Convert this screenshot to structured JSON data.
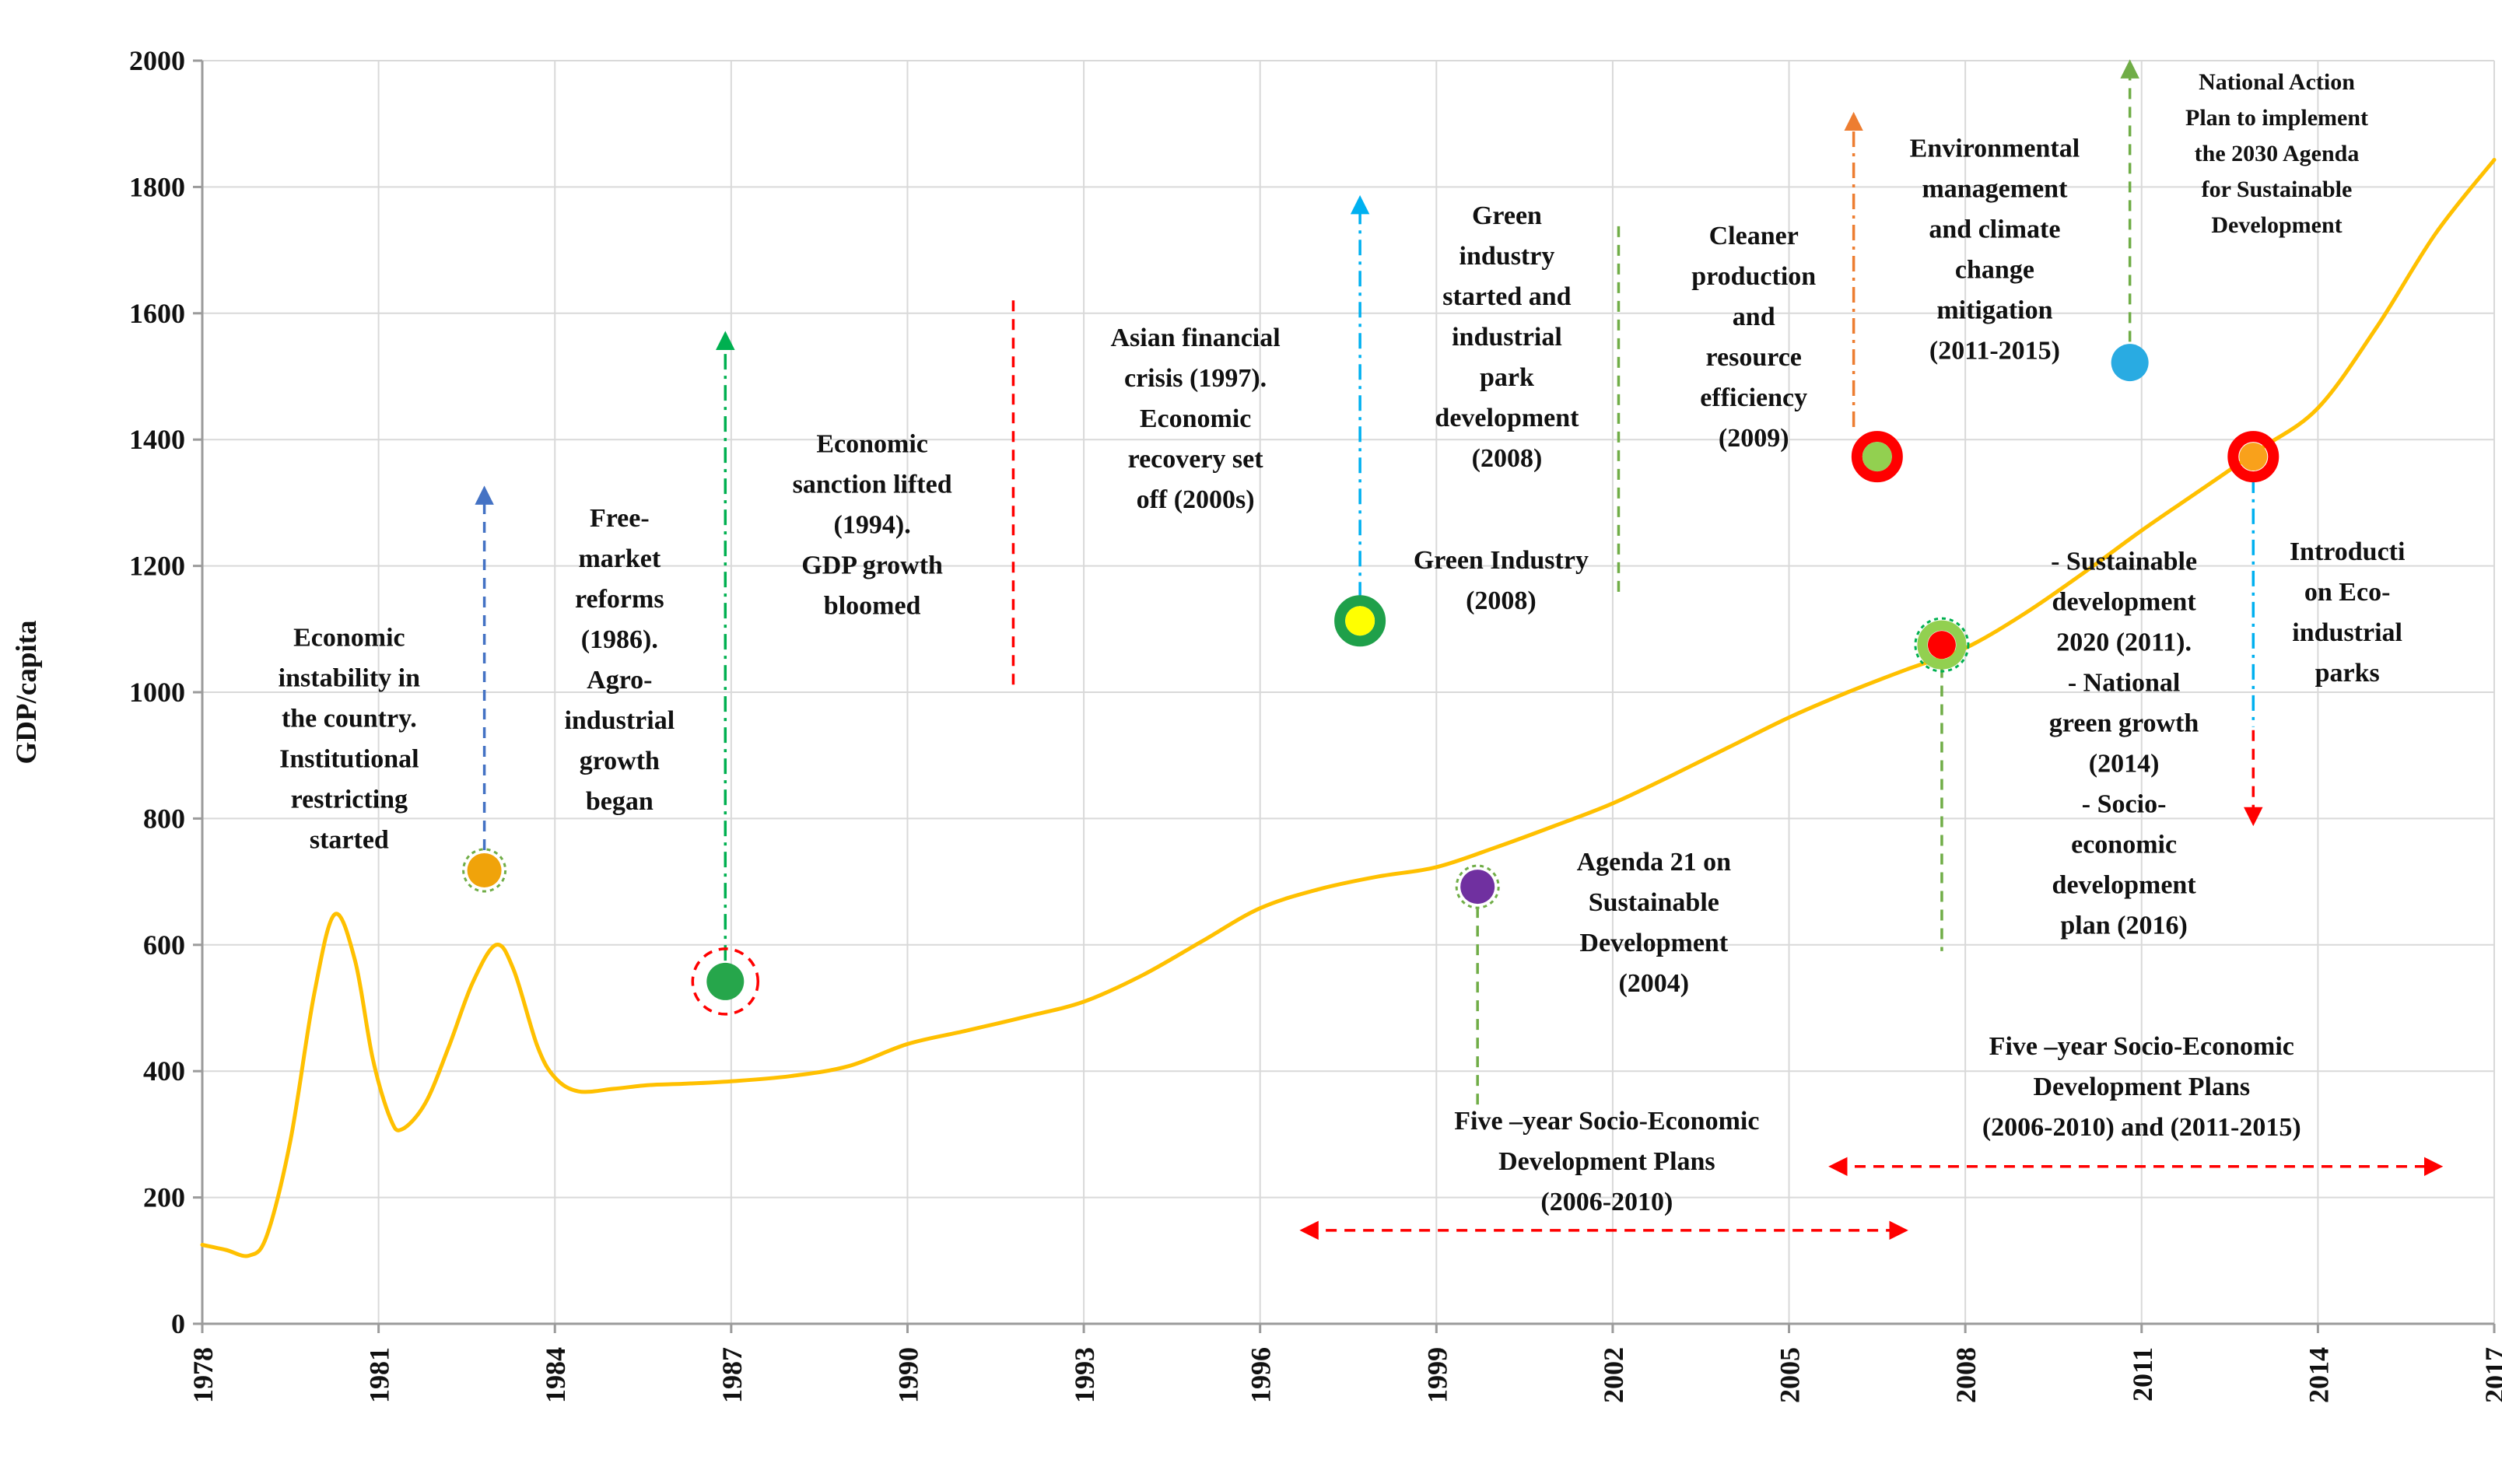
{
  "chart_data": {
    "type": "line",
    "title": "",
    "xlabel": "",
    "ylabel": "GDP/capita",
    "xlim": [
      1978,
      2017
    ],
    "ylim": [
      0,
      2000
    ],
    "x_ticks": [
      1978,
      1981,
      1984,
      1987,
      1990,
      1993,
      1996,
      1999,
      2002,
      2005,
      2008,
      2011,
      2014,
      2017
    ],
    "y_ticks": [
      0,
      200,
      400,
      600,
      800,
      1000,
      1200,
      1400,
      1600,
      1800,
      2000
    ],
    "grid": true,
    "grid_color": "#D9D9D9",
    "axis_color": "#9B9B9B",
    "series": [
      {
        "name": "GDP per capita",
        "color": "#FFC000",
        "points": [
          [
            1978,
            125
          ],
          [
            1978.4,
            117
          ],
          [
            1978.8,
            108
          ],
          [
            1979.1,
            140
          ],
          [
            1979.5,
            290
          ],
          [
            1979.9,
            520
          ],
          [
            1980.25,
            648
          ],
          [
            1980.6,
            575
          ],
          [
            1980.9,
            420
          ],
          [
            1981.2,
            325
          ],
          [
            1981.4,
            308
          ],
          [
            1981.8,
            350
          ],
          [
            1982.2,
            440
          ],
          [
            1982.6,
            540
          ],
          [
            1983,
            600
          ],
          [
            1983.3,
            560
          ],
          [
            1983.7,
            440
          ],
          [
            1984,
            390
          ],
          [
            1984.4,
            368
          ],
          [
            1985,
            372
          ],
          [
            1985.6,
            378
          ],
          [
            1986.2,
            380
          ],
          [
            1987,
            384
          ],
          [
            1988,
            392
          ],
          [
            1989,
            408
          ],
          [
            1990,
            443
          ],
          [
            1991,
            464
          ],
          [
            1992,
            486
          ],
          [
            1993,
            510
          ],
          [
            1994,
            552
          ],
          [
            1995,
            605
          ],
          [
            1996,
            658
          ],
          [
            1997,
            688
          ],
          [
            1998,
            708
          ],
          [
            1999,
            723
          ],
          [
            2000,
            754
          ],
          [
            2001,
            788
          ],
          [
            2002,
            824
          ],
          [
            2003,
            868
          ],
          [
            2004,
            914
          ],
          [
            2005,
            960
          ],
          [
            2006,
            1000
          ],
          [
            2007,
            1036
          ],
          [
            2008,
            1070
          ],
          [
            2009,
            1124
          ],
          [
            2010,
            1188
          ],
          [
            2011,
            1256
          ],
          [
            2012,
            1320
          ],
          [
            2013,
            1384
          ],
          [
            2014,
            1450
          ],
          [
            2015,
            1578
          ],
          [
            2016,
            1726
          ],
          [
            2017,
            1843
          ]
        ]
      }
    ],
    "markers": [
      {
        "name": "free-market-dot",
        "x": 1982.8,
        "y": 718,
        "r": 22,
        "fill": "#F0A30A",
        "ring": {
          "color": "#70AD47",
          "width": 3,
          "r": 27,
          "dash": "5 5"
        }
      },
      {
        "name": "sanction-dot",
        "x": 1986.9,
        "y": 542,
        "r": 24,
        "fill": "#26A64B",
        "ring": {
          "color": "#FF0000",
          "width": 3.5,
          "r": 42,
          "dash": "12 9"
        }
      },
      {
        "name": "green-industry-dot",
        "x": 1997.7,
        "y": 1113,
        "r": 19,
        "fill": "#FFFF00",
        "ring": {
          "color": "#1FA04A",
          "width": 14,
          "r": 26,
          "dash": ""
        }
      },
      {
        "name": "agenda21-dot",
        "x": 1999.7,
        "y": 692,
        "r": 22,
        "fill": "#7030A0",
        "ring": {
          "color": "#70AD47",
          "width": 3,
          "r": 27,
          "dash": "5 5"
        }
      },
      {
        "name": "cleaner-production-dot",
        "x": 2006.5,
        "y": 1373,
        "r": 19,
        "fill": "#92D050",
        "ring": {
          "color": "#FF0000",
          "width": 14,
          "r": 26,
          "dash": ""
        }
      },
      {
        "name": "sustainable-dev-dot",
        "x": 2007.6,
        "y": 1075,
        "r": 18,
        "fill": "#FF0000",
        "ring": {
          "color": "#92D050",
          "width": 13,
          "r": 25,
          "dash": ""
        },
        "outline": {
          "color": "#00B050",
          "width": 3,
          "r": 34,
          "dash": "5 5"
        }
      },
      {
        "name": "national-action-dot",
        "x": 2010.8,
        "y": 1522,
        "r": 24,
        "fill": "#29ABE2"
      },
      {
        "name": "eip-dot",
        "x": 2012.9,
        "y": 1373,
        "r": 18,
        "fill": "#F9A11B",
        "ring": {
          "color": "#FF0000",
          "width": 14,
          "r": 26,
          "dash": ""
        }
      }
    ],
    "arrows": [
      {
        "name": "free-market-arrow",
        "x1": 1982.8,
        "y1": 750,
        "x2": 1982.8,
        "y2": 1315,
        "color": "#4472C4",
        "style": "dash",
        "head": "end"
      },
      {
        "name": "sanction-arrow",
        "x1": 1986.9,
        "y1": 575,
        "x2": 1986.9,
        "y2": 1560,
        "color": "#00B050",
        "style": "dashdot",
        "head": "end"
      },
      {
        "name": "crisis-line",
        "x1": 1991.8,
        "y1": 1012,
        "x2": 1991.8,
        "y2": 1630,
        "color": "#FF0000",
        "style": "dash",
        "head": "none"
      },
      {
        "name": "green-industry-arrow",
        "x1": 1997.7,
        "y1": 1150,
        "x2": 1997.7,
        "y2": 1775,
        "color": "#00B0F0",
        "style": "dashdot",
        "head": "end"
      },
      {
        "name": "industrial-park-line",
        "x1": 2002.1,
        "y1": 1159,
        "x2": 2002.1,
        "y2": 1743,
        "color": "#70AD47",
        "style": "dash",
        "head": "none"
      },
      {
        "name": "cleaner-production-arrow",
        "x1": 2006.1,
        "y1": 1420,
        "x2": 2006.1,
        "y2": 1907,
        "color": "#ED7D31",
        "style": "dashdot",
        "head": "end"
      },
      {
        "name": "agenda21-line",
        "x1": 1999.7,
        "y1": 660,
        "x2": 1999.7,
        "y2": 335,
        "color": "#70AD47",
        "style": "dash",
        "head": "none"
      },
      {
        "name": "sustainable-dev-line",
        "x1": 2007.6,
        "y1": 1040,
        "x2": 2007.6,
        "y2": 590,
        "color": "#70AD47",
        "style": "dash",
        "head": "none"
      },
      {
        "name": "national-action-arrow",
        "x1": 2010.8,
        "y1": 1555,
        "x2": 2010.8,
        "y2": 1990,
        "color": "#70AD47",
        "style": "dash",
        "head": "end"
      },
      {
        "name": "eip-line",
        "x1": 2012.9,
        "y1": 1340,
        "x2": 2012.9,
        "y2": 945,
        "color": "#00B0F0",
        "style": "dashdot",
        "head": "none"
      },
      {
        "name": "eip-arrow",
        "x1": 2012.9,
        "y1": 940,
        "x2": 2012.9,
        "y2": 800,
        "color": "#FF0000",
        "style": "dash",
        "head": "end"
      },
      {
        "name": "plans-2006-2010-span",
        "x1": 1996.8,
        "y1": 148,
        "x2": 2006.9,
        "y2": 148,
        "color": "#FF0000",
        "style": "dash",
        "head": "both"
      },
      {
        "name": "plans-2006-2015-span",
        "x1": 2005.8,
        "y1": 249,
        "x2": 2016.0,
        "y2": 249,
        "color": "#FF0000",
        "style": "dash",
        "head": "both"
      }
    ],
    "annotations": [
      {
        "name": "economic-instability",
        "x": 1980.5,
        "y": 913,
        "lines": [
          "Economic",
          "instability in",
          "the country.",
          "Institutional",
          "restricting",
          "started"
        ]
      },
      {
        "name": "free-market-reforms",
        "x": 1985.1,
        "y": 1038,
        "lines": [
          "Free-",
          "market",
          "reforms",
          "(1986).",
          "Agro-",
          "industrial",
          "growth",
          "began"
        ]
      },
      {
        "name": "economic-sanction",
        "x": 1989.4,
        "y": 1252,
        "lines": [
          "Economic",
          "sanction lifted",
          "(1994).",
          "GDP growth",
          "bloomed"
        ]
      },
      {
        "name": "asian-crisis",
        "x": 1994.9,
        "y": 1420,
        "lines": [
          "Asian financial",
          "crisis (1997).",
          "Economic",
          "recovery set",
          "off (2000s)"
        ]
      },
      {
        "name": "green-industry-started",
        "x": 2000.2,
        "y": 1549,
        "lines": [
          "Green",
          "industry",
          "started and",
          "industrial",
          "park",
          "development",
          "(2008)"
        ]
      },
      {
        "name": "green-industry-label",
        "x": 2000.1,
        "y": 1164,
        "lines": [
          "Green Industry",
          "(2008)"
        ]
      },
      {
        "name": "cleaner-production",
        "x": 2004.4,
        "y": 1549,
        "lines": [
          "Cleaner",
          "production",
          "and",
          "resource",
          "efficiency",
          "(2009)"
        ]
      },
      {
        "name": "environmental-management",
        "x": 2008.5,
        "y": 1688,
        "lines": [
          "Environmental",
          "management",
          "and climate",
          "change",
          "mitigation",
          "(2011-2015)"
        ]
      },
      {
        "name": "national-action-plan",
        "x": 2013.3,
        "y": 1841,
        "small": true,
        "lines": [
          "National Action",
          "Plan to implement",
          "the 2030 Agenda",
          "for Sustainable",
          "Development"
        ]
      },
      {
        "name": "agenda-21",
        "x": 2002.7,
        "y": 622,
        "lines": [
          "Agenda 21 on",
          "Sustainable",
          "Development",
          "(2004)"
        ]
      },
      {
        "name": "sustainable-development-list",
        "x": 2010.7,
        "y": 906,
        "lines": [
          "-  Sustainable",
          "development",
          "2020 (2011).",
          "-    National",
          "green growth",
          "(2014)",
          "-    Socio-",
          "economic",
          "development",
          "plan (2016)"
        ]
      },
      {
        "name": "eco-industrial-parks",
        "x": 2014.5,
        "y": 1113,
        "lines": [
          "Introducti",
          "on Eco-",
          "industrial",
          "parks"
        ]
      },
      {
        "name": "five-year-plans-1",
        "x": 2001.9,
        "y": 244,
        "lines": [
          "Five –year Socio-Economic",
          "Development Plans",
          "(2006-2010)"
        ]
      },
      {
        "name": "five-year-plans-2",
        "x": 2011.0,
        "y": 362,
        "lines": [
          "Five –year Socio-Economic",
          "Development Plans",
          "(2006-2010) and (2011-2015)"
        ]
      }
    ]
  }
}
